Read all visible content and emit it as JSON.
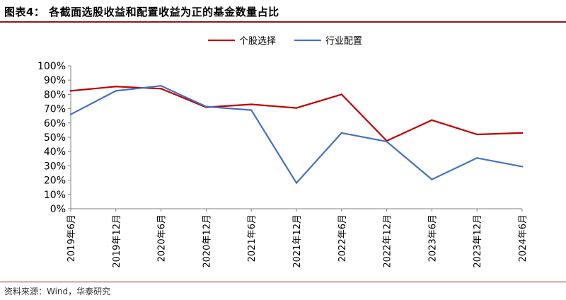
{
  "header": {
    "title": "图表4：  各截面选股收益和配置收益为正的基金数量占比"
  },
  "footer": {
    "source": "资料来源：Wind，华泰研究"
  },
  "colors": {
    "series1": "#C00000",
    "series2": "#4472C4",
    "rule": "#8C1A1A",
    "axis": "#808080"
  },
  "chart_data": {
    "type": "line",
    "categories": [
      "2019年6月",
      "2019年12月",
      "2020年6月",
      "2020年12月",
      "2021年6月",
      "2021年12月",
      "2022年6月",
      "2022年12月",
      "2023年6月",
      "2023年12月",
      "2024年6月"
    ],
    "series": [
      {
        "name": "个股选择",
        "values": [
          82.5,
          85.5,
          84,
          71,
          73,
          70.5,
          80,
          47.5,
          62,
          52,
          53
        ]
      },
      {
        "name": "行业配置",
        "values": [
          66,
          82.5,
          86,
          71.5,
          69,
          18,
          53,
          47,
          20.5,
          35.5,
          29.5
        ]
      }
    ],
    "yticks": [
      "0%",
      "10%",
      "20%",
      "30%",
      "40%",
      "50%",
      "60%",
      "70%",
      "80%",
      "90%",
      "100%"
    ],
    "ylim": [
      0,
      100
    ],
    "grid": false,
    "legend": "top-center"
  }
}
